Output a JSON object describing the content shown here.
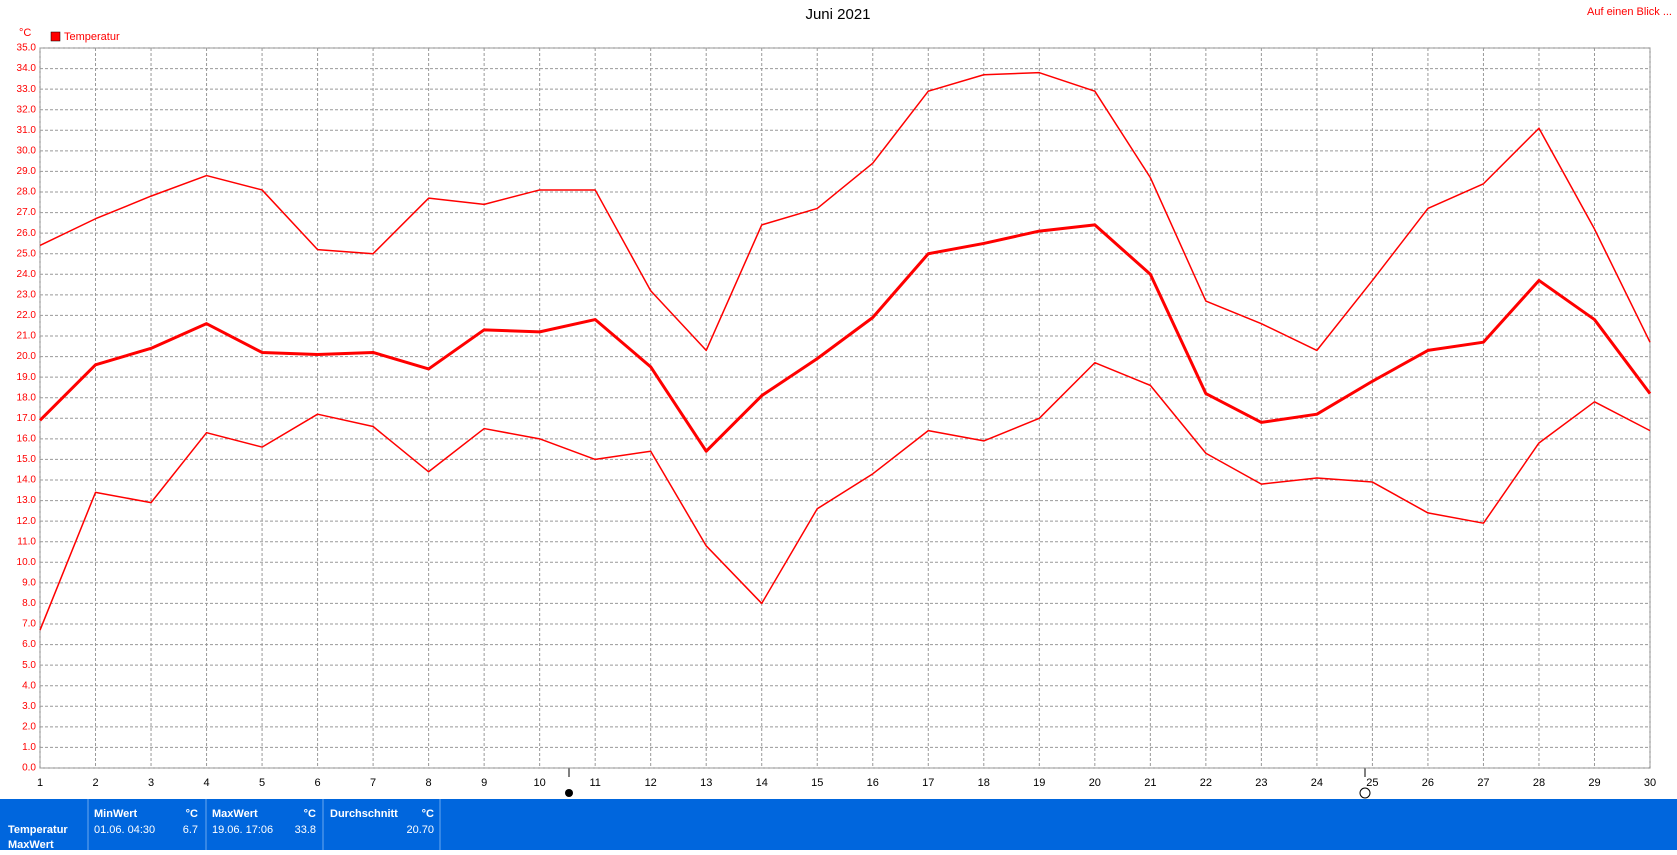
{
  "chart_data": {
    "type": "line",
    "title": "Juni 2021",
    "y_label": "°C",
    "link": "Auf einen Blick ...",
    "x": [
      1,
      2,
      3,
      4,
      5,
      6,
      7,
      8,
      9,
      10,
      11,
      12,
      13,
      14,
      15,
      16,
      17,
      18,
      19,
      20,
      21,
      22,
      23,
      24,
      25,
      26,
      27,
      28,
      29,
      30
    ],
    "xlim": [
      1,
      30
    ],
    "xticks": [
      1,
      2,
      3,
      4,
      5,
      6,
      7,
      8,
      9,
      10,
      11,
      12,
      13,
      14,
      15,
      16,
      17,
      18,
      19,
      20,
      21,
      22,
      23,
      24,
      25,
      26,
      27,
      28,
      29,
      30
    ],
    "ylim": [
      0,
      35
    ],
    "yticks": [
      {
        "value": 0,
        "label": "0.0"
      },
      {
        "value": 1,
        "label": "1.0"
      },
      {
        "value": 2,
        "label": "2.0"
      },
      {
        "value": 3,
        "label": "3.0"
      },
      {
        "value": 4,
        "label": "4.0"
      },
      {
        "value": 5,
        "label": "5.0"
      },
      {
        "value": 6,
        "label": "6.0"
      },
      {
        "value": 7,
        "label": "7.0"
      },
      {
        "value": 8,
        "label": "8.0"
      },
      {
        "value": 9,
        "label": "9.0"
      },
      {
        "value": 10,
        "label": "10.0"
      },
      {
        "value": 11,
        "label": "11.0"
      },
      {
        "value": 12,
        "label": "12.0"
      },
      {
        "value": 13,
        "label": "13.0"
      },
      {
        "value": 14,
        "label": "14.0"
      },
      {
        "value": 15,
        "label": "15.0"
      },
      {
        "value": 16,
        "label": "16.0"
      },
      {
        "value": 17,
        "label": "17.0"
      },
      {
        "value": 18,
        "label": "18.0"
      },
      {
        "value": 19,
        "label": "19.0"
      },
      {
        "value": 20,
        "label": "20.0"
      },
      {
        "value": 21,
        "label": "21.0"
      },
      {
        "value": 22,
        "label": "22.0"
      },
      {
        "value": 23,
        "label": "23.0"
      },
      {
        "value": 24,
        "label": "24.0"
      },
      {
        "value": 25,
        "label": "25.0"
      },
      {
        "value": 26,
        "label": "26.0"
      },
      {
        "value": 27,
        "label": "27.0"
      },
      {
        "value": 28,
        "label": "28.0"
      },
      {
        "value": 29,
        "label": "29.0"
      },
      {
        "value": 30,
        "label": "30.0"
      },
      {
        "value": 31,
        "label": "31.0"
      },
      {
        "value": 32,
        "label": "32.0"
      },
      {
        "value": 33,
        "label": "33.0"
      },
      {
        "value": 34,
        "label": "34.0"
      },
      {
        "value": 35,
        "label": "35.0"
      }
    ],
    "grid": true,
    "legend": "top-left",
    "series": [
      {
        "name": "Temperatur",
        "color": "#ff0000",
        "width": 3,
        "values": [
          16.9,
          19.6,
          20.4,
          21.6,
          20.2,
          20.1,
          20.2,
          19.4,
          21.3,
          21.2,
          21.8,
          19.5,
          15.4,
          18.1,
          19.9,
          21.9,
          25.0,
          25.5,
          26.1,
          26.4,
          24.0,
          18.2,
          16.8,
          17.2,
          18.8,
          20.3,
          20.7,
          23.7,
          21.8,
          18.2
        ]
      },
      {
        "color": "#ff0000",
        "width": 1.5,
        "values": [
          25.4,
          26.7,
          27.8,
          28.8,
          28.1,
          25.2,
          25.0,
          27.7,
          27.4,
          28.1,
          28.1,
          23.2,
          20.3,
          26.4,
          27.2,
          29.4,
          32.9,
          33.7,
          33.8,
          32.9,
          28.7,
          22.7,
          21.6,
          20.3,
          23.7,
          27.2,
          28.4,
          31.1,
          26.2,
          20.7
        ]
      },
      {
        "color": "#ff0000",
        "width": 1.5,
        "values": [
          6.7,
          13.4,
          12.9,
          16.3,
          15.6,
          17.2,
          16.6,
          14.4,
          16.5,
          16.0,
          15.0,
          15.4,
          10.8,
          8.0,
          12.6,
          14.3,
          16.4,
          15.9,
          17.0,
          19.7,
          18.6,
          15.3,
          13.8,
          14.1,
          13.9,
          12.4,
          11.9,
          15.8,
          17.8,
          16.4
        ]
      }
    ]
  },
  "summary": {
    "headers": [
      "MinWert",
      "°C",
      "MaxWert",
      "°C",
      "Durchschnitt",
      "°C"
    ],
    "row_label": "Temperatur",
    "row_label2": "MaxWert",
    "min_time": "01.06. 04:30",
    "min_value": "6.7",
    "max_time": "19.06. 17:06",
    "max_value": "33.8",
    "avg_value": "20.70"
  }
}
